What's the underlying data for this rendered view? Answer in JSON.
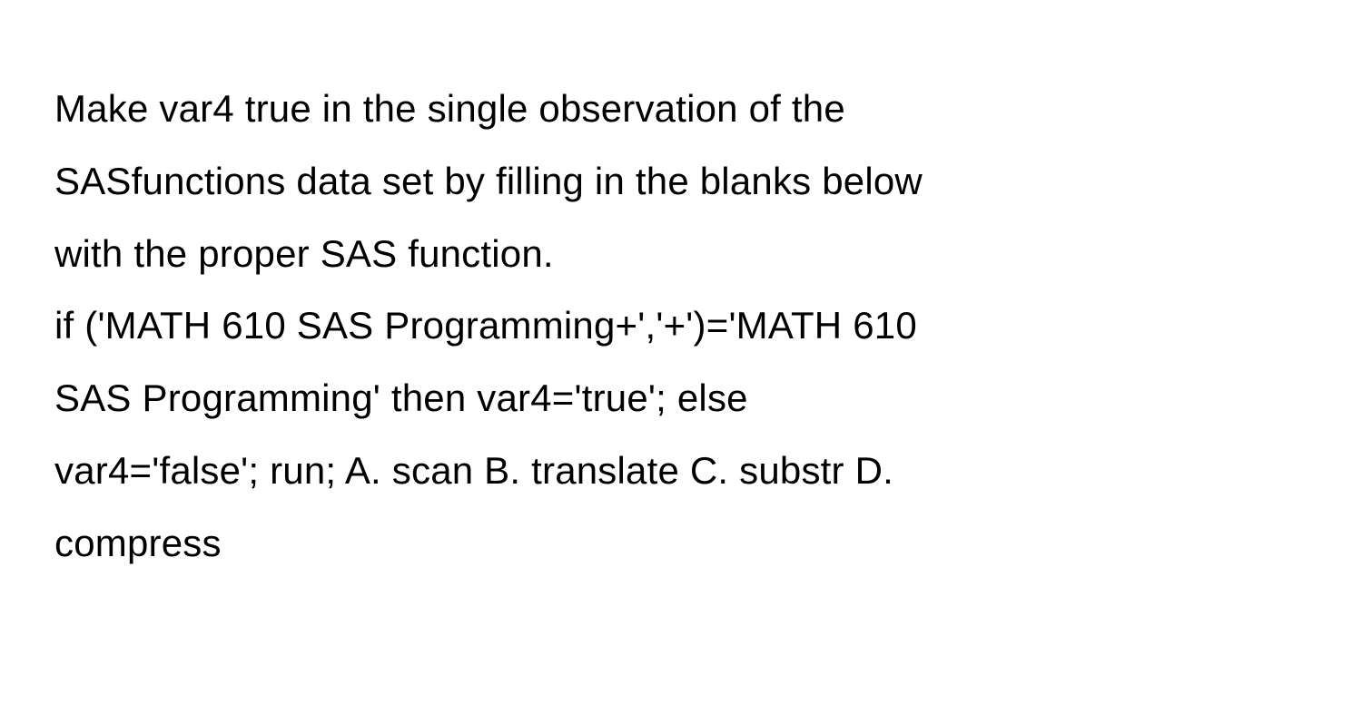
{
  "question": {
    "prompt_line1": "Make var4 true in the single observation of the",
    "prompt_line2": "SASfunctions data set by filling in the blanks below",
    "prompt_line3": "with the proper SAS function.",
    "code_line1": "if ('MATH 610 SAS Programming+','+')='MATH 610",
    "code_line2": "SAS Programming' then var4='true'; else",
    "code_line3": "var4='false'; run; A. scan B. translate C. substr D.",
    "code_line4": "compress"
  },
  "styling": {
    "font_size_pt": 42,
    "line_height": 1.9,
    "text_color": "#000000",
    "background_color": "#ffffff",
    "font_weight": 400,
    "font_family": "system-ui"
  },
  "options": [
    {
      "label": "A",
      "value": "scan"
    },
    {
      "label": "B",
      "value": "translate"
    },
    {
      "label": "C",
      "value": "substr"
    },
    {
      "label": "D",
      "value": "compress"
    }
  ]
}
